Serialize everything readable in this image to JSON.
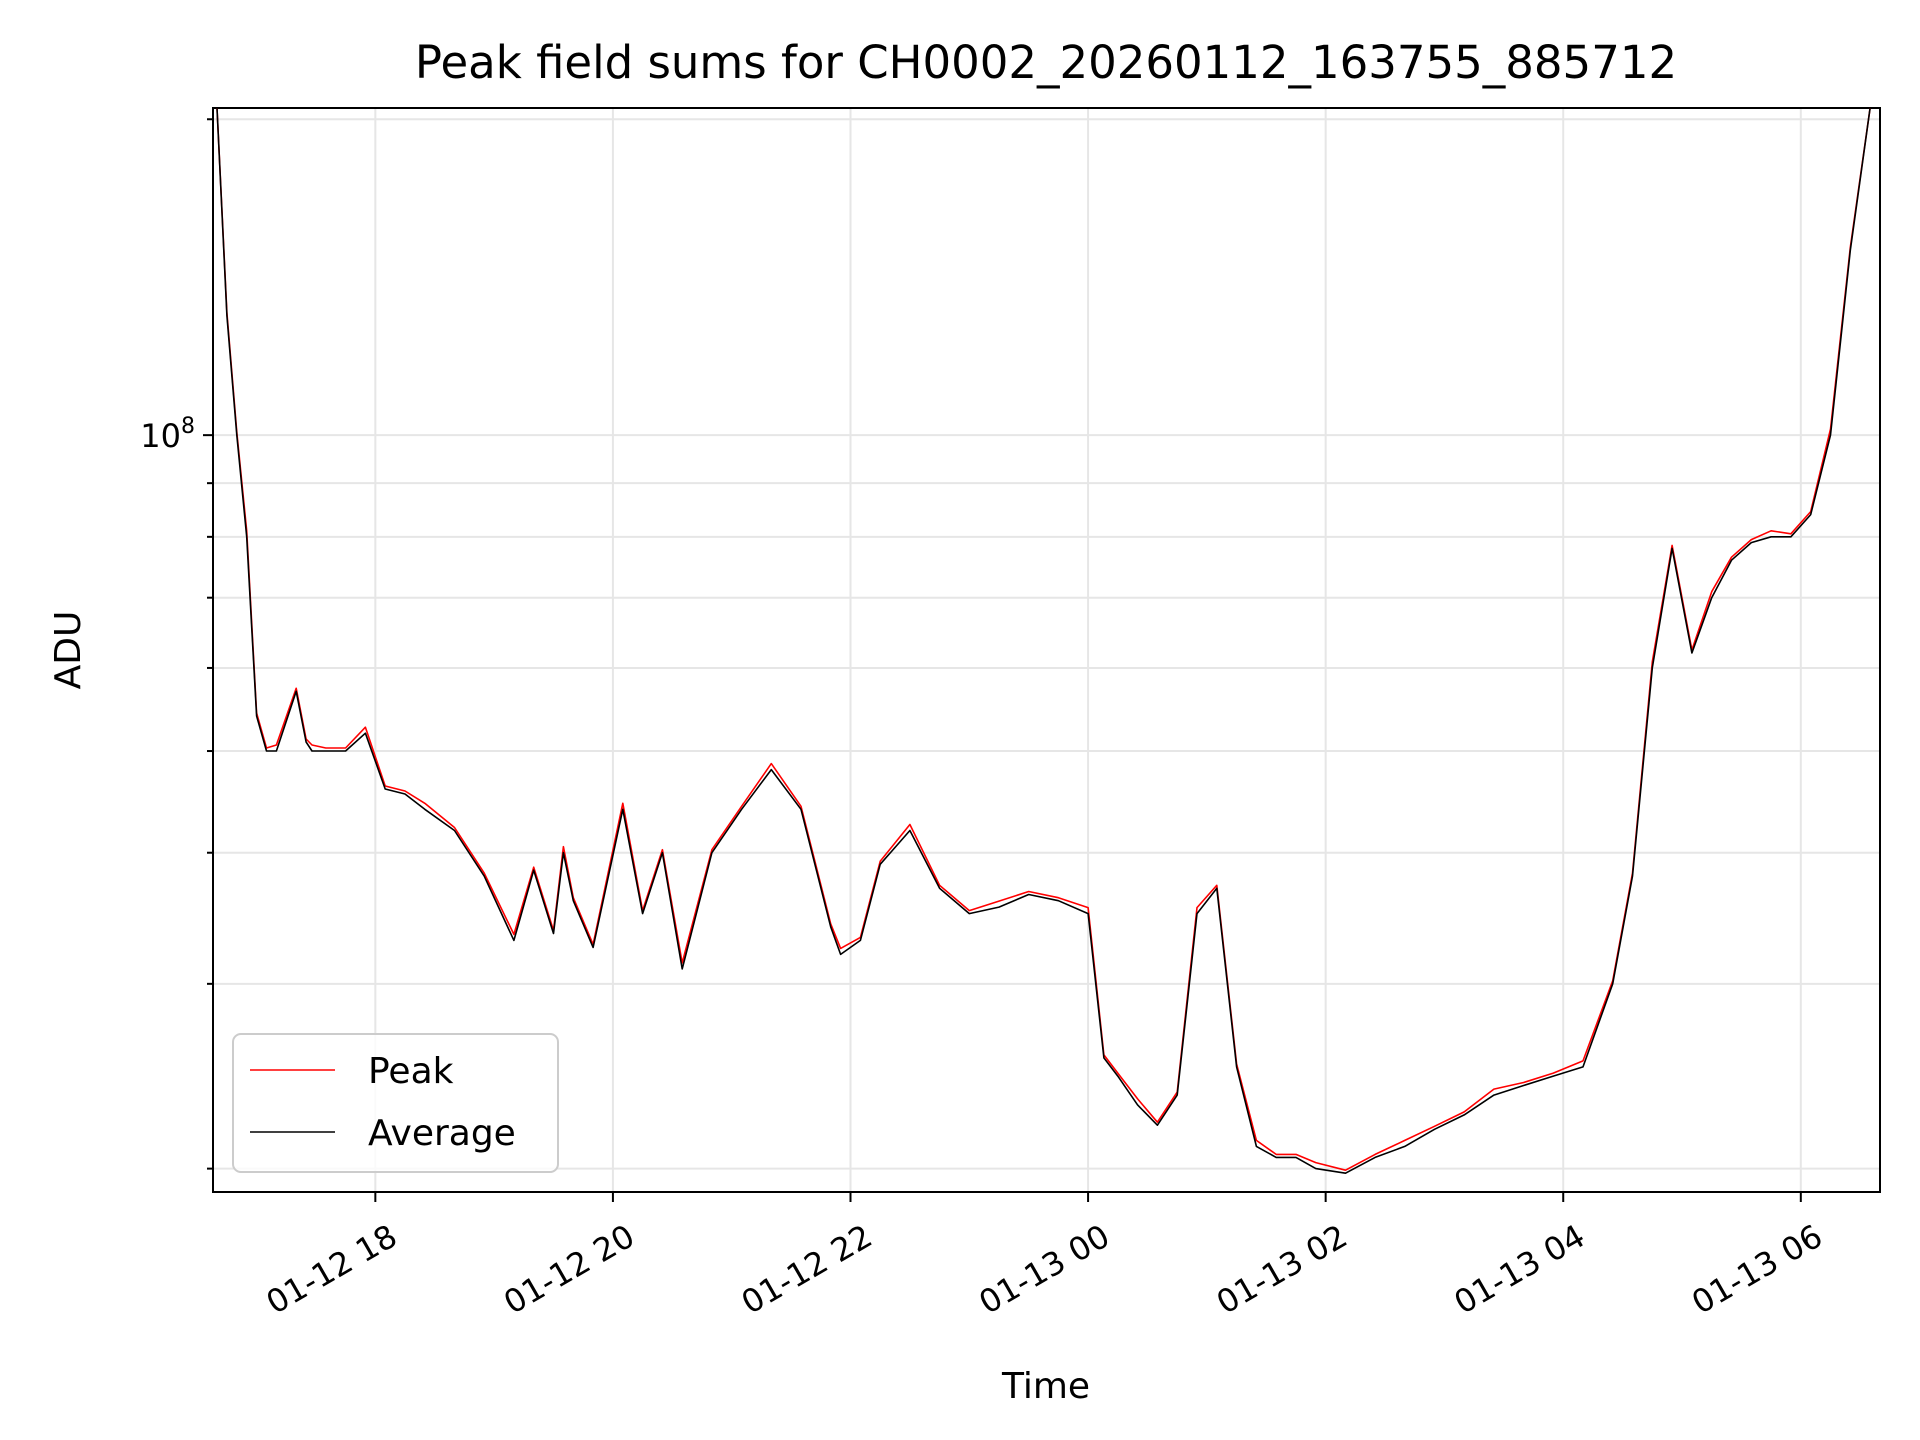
{
  "chart_data": {
    "type": "line",
    "title": "Peak field sums for CH0002_20260112_163755_885712",
    "xlabel": "Time",
    "ylabel": "ADU",
    "yscale": "log",
    "ylim": [
      19000000,
      205000000
    ],
    "xlim": [
      "2026-01-12 16:38",
      "2026-01-13 06:40"
    ],
    "x_ticks": [
      {
        "t": "2026-01-12 18:00",
        "label": "01-12 18"
      },
      {
        "t": "2026-01-12 20:00",
        "label": "01-12 20"
      },
      {
        "t": "2026-01-12 22:00",
        "label": "01-12 22"
      },
      {
        "t": "2026-01-13 00:00",
        "label": "01-13 00"
      },
      {
        "t": "2026-01-13 02:00",
        "label": "01-13 02"
      },
      {
        "t": "2026-01-13 04:00",
        "label": "01-13 04"
      },
      {
        "t": "2026-01-13 06:00",
        "label": "01-13 06"
      }
    ],
    "y_major_ticks": [
      {
        "value": 100000000,
        "label": "10^8"
      }
    ],
    "grid": true,
    "legend_position": "lower-left",
    "series": [
      {
        "name": "Peak",
        "color": "#ff0000"
      },
      {
        "name": "Average",
        "color": "#000000"
      }
    ],
    "x": [
      "2026-01-12 16:40",
      "2026-01-12 16:45",
      "2026-01-12 16:50",
      "2026-01-12 16:55",
      "2026-01-12 17:00",
      "2026-01-12 17:05",
      "2026-01-12 17:10",
      "2026-01-12 17:20",
      "2026-01-12 17:25",
      "2026-01-12 17:28",
      "2026-01-12 17:35",
      "2026-01-12 17:45",
      "2026-01-12 17:55",
      "2026-01-12 18:05",
      "2026-01-12 18:15",
      "2026-01-12 18:25",
      "2026-01-12 18:40",
      "2026-01-12 18:55",
      "2026-01-12 19:10",
      "2026-01-12 19:20",
      "2026-01-12 19:30",
      "2026-01-12 19:35",
      "2026-01-12 19:40",
      "2026-01-12 19:50",
      "2026-01-12 20:05",
      "2026-01-12 20:15",
      "2026-01-12 20:25",
      "2026-01-12 20:35",
      "2026-01-12 20:50",
      "2026-01-12 21:05",
      "2026-01-12 21:20",
      "2026-01-12 21:35",
      "2026-01-12 21:50",
      "2026-01-12 21:55",
      "2026-01-12 22:05",
      "2026-01-12 22:15",
      "2026-01-12 22:30",
      "2026-01-12 22:45",
      "2026-01-12 23:00",
      "2026-01-12 23:15",
      "2026-01-12 23:30",
      "2026-01-12 23:45",
      "2026-01-13 00:00",
      "2026-01-13 00:08",
      "2026-01-13 00:15",
      "2026-01-13 00:25",
      "2026-01-13 00:35",
      "2026-01-13 00:45",
      "2026-01-13 00:55",
      "2026-01-13 01:05",
      "2026-01-13 01:15",
      "2026-01-13 01:25",
      "2026-01-13 01:35",
      "2026-01-13 01:45",
      "2026-01-13 01:55",
      "2026-01-13 02:10",
      "2026-01-13 02:25",
      "2026-01-13 02:40",
      "2026-01-13 02:55",
      "2026-01-13 03:10",
      "2026-01-13 03:25",
      "2026-01-13 03:40",
      "2026-01-13 03:55",
      "2026-01-13 04:10",
      "2026-01-13 04:25",
      "2026-01-13 04:35",
      "2026-01-13 04:45",
      "2026-01-13 04:55",
      "2026-01-13 05:05",
      "2026-01-13 05:15",
      "2026-01-13 05:25",
      "2026-01-13 05:35",
      "2026-01-13 05:45",
      "2026-01-13 05:55",
      "2026-01-13 06:05",
      "2026-01-13 06:15",
      "2026-01-13 06:25",
      "2026-01-13 06:35"
    ],
    "values_average": [
      205000000,
      130000000,
      100000000,
      80000000,
      54000000,
      50000000,
      50000000,
      57000000,
      51000000,
      50000000,
      50000000,
      50000000,
      52000000,
      46000000,
      45500000,
      44000000,
      42000000,
      38000000,
      33000000,
      38500000,
      33500000,
      40000000,
      36000000,
      32500000,
      44000000,
      35000000,
      40000000,
      31000000,
      40000000,
      44000000,
      48000000,
      44000000,
      34000000,
      32000000,
      33000000,
      39000000,
      42000000,
      37000000,
      35000000,
      35500000,
      36500000,
      36000000,
      35000000,
      25500000,
      24500000,
      23000000,
      22000000,
      23500000,
      35000000,
      37000000,
      25000000,
      21000000,
      20500000,
      20500000,
      20000000,
      19800000,
      20500000,
      21000000,
      21800000,
      22500000,
      23500000,
      24000000,
      24500000,
      25000000,
      30000000,
      38000000,
      60000000,
      78000000,
      62000000,
      70000000,
      76000000,
      79000000,
      80000000,
      80000000,
      84000000,
      100000000,
      150000000,
      205000000
    ]
  }
}
